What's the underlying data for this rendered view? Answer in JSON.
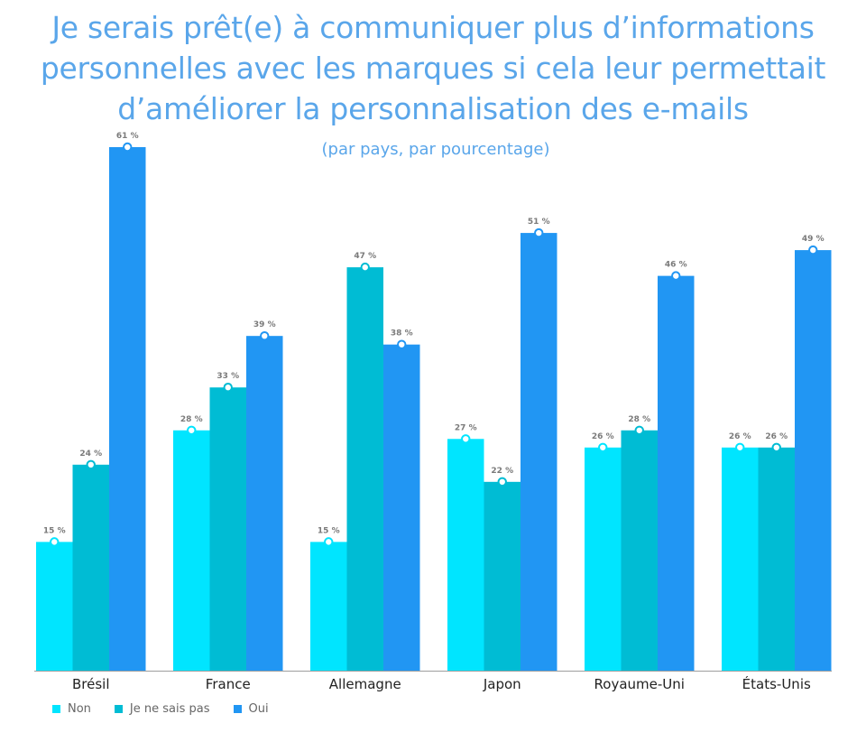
{
  "chart_data": {
    "type": "bar",
    "title": "Je serais prêt(e) à communiquer plus d’informations personnelles avec les marques si cela leur permettait d’améliorer la personnalisation des e-mails",
    "subtitle": "(par pays, par pourcentage)",
    "xlabel": "",
    "ylabel": "",
    "ylim": [
      0,
      61
    ],
    "grid": false,
    "legend_position": "bottom-left",
    "categories": [
      "Brésil",
      "France",
      "Allemagne",
      "Japon",
      "Royaume-Uni",
      "États-Unis"
    ],
    "series": [
      {
        "name": "Non",
        "color": "#00e5ff",
        "values": [
          15,
          28,
          15,
          27,
          26,
          26
        ],
        "labels": [
          "15 %",
          "28 %",
          "15 %",
          "27 %",
          "26 %",
          "26 %"
        ]
      },
      {
        "name": "Je ne sais pas",
        "color": "#00bcd4",
        "values": [
          24,
          33,
          47,
          22,
          28,
          26
        ],
        "labels": [
          "24 %",
          "33 %",
          "47 %",
          "22 %",
          "28 %",
          "26 %"
        ]
      },
      {
        "name": "Oui",
        "color": "#2196f3",
        "values": [
          61,
          39,
          38,
          51,
          46,
          49
        ],
        "labels": [
          "61 %",
          "39 %",
          "38 %",
          "51 %",
          "46 %",
          "49 %"
        ]
      }
    ]
  }
}
